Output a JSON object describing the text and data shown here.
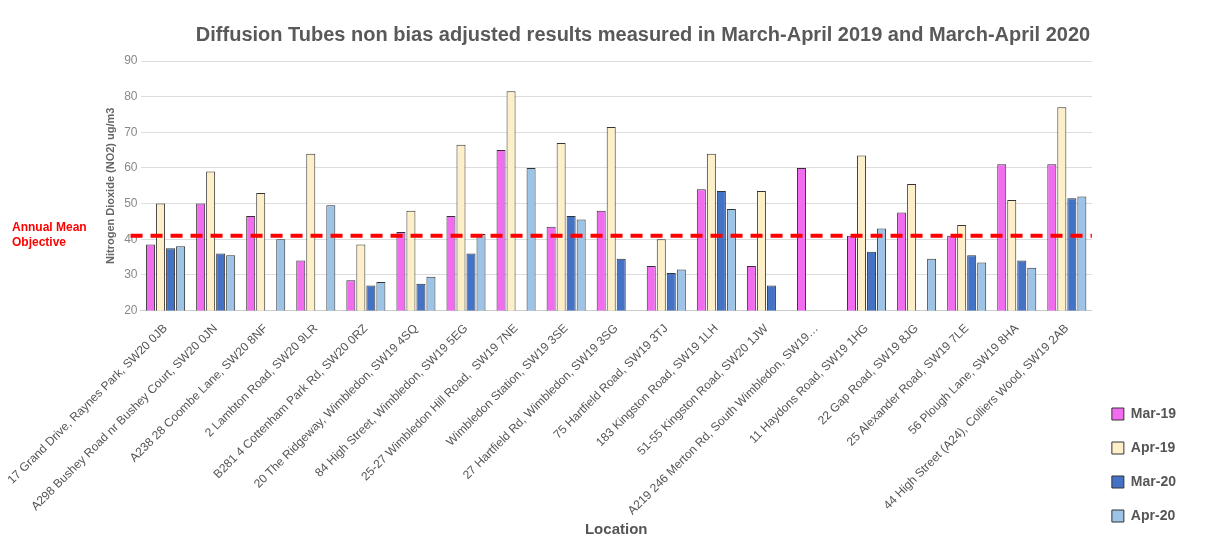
{
  "chart_data": {
    "type": "bar",
    "title": "Diffusion Tubes non bias adjusted results measured in March-April 2019 and March-April 2020",
    "xlabel": "Location",
    "ylabel": "Nitrogen Dioxide (NO2) ug/m3",
    "categories": [
      "17 Grand Drive, Raynes Park, SW20 0JB",
      "A298 Bushey Road nr Bushey Court, SW20 0JN",
      "A238 28 Coombe Lane, SW20 8NF",
      "2 Lambton Road, SW20 9LR",
      "B281 4 Cottenham Park Rd, SW20 0RZ",
      "20 The Ridgeway, Wimbledon, SW19 4SQ",
      "84 High Street, Wimbledon, SW19 5EG",
      "25-27 Wimbledon Hill Road,  SW19 7NE",
      "Wimbledon Station, SW19 3SE",
      "27 Hartfield Rd, Wimbledon, SW19 3SG",
      "75 Hartfield Road, SW19 3TJ",
      "183 Kingston Road, SW19 1LH",
      "51-55 Kingston Road, SW20 1JW",
      "A219 246 Merton Rd, South Wimbledon, SW19…",
      "11 Haydons Road, SW19 1HG",
      "22 Gap Road, SW19 8JG",
      "25 Alexander Road, SW19 7LE",
      "56 Plough Lane, SW19 8HA",
      "44 High Street (A24), Colliers Wood, SW19 2AB"
    ],
    "series": [
      {
        "name": "Mar-19",
        "color": "#f26cf0",
        "values": [
          38.5,
          50,
          46.5,
          34,
          28.5,
          42,
          46.5,
          65,
          43.5,
          48,
          32.5,
          54,
          32.5,
          60,
          41,
          47.5,
          41,
          61,
          61
        ]
      },
      {
        "name": "Apr-19",
        "color": "#fdf0c8",
        "values": [
          50,
          59,
          53,
          64,
          38.5,
          48,
          66.5,
          81.5,
          67,
          71.5,
          40,
          64,
          53.5,
          null,
          63.5,
          55.5,
          44,
          51,
          77
        ]
      },
      {
        "name": "Mar-20",
        "color": "#4472c4",
        "values": [
          37.5,
          36,
          null,
          null,
          27,
          27.5,
          36,
          null,
          46.5,
          34.5,
          30.5,
          53.5,
          27,
          null,
          36.5,
          null,
          35.5,
          34,
          51.5
        ]
      },
      {
        "name": "Apr-20",
        "color": "#9dc3e6",
        "values": [
          38,
          35.5,
          40,
          49.5,
          28,
          29.5,
          41.5,
          60,
          45.5,
          null,
          31.5,
          48.5,
          null,
          null,
          43,
          34.5,
          33.5,
          32,
          52
        ]
      }
    ],
    "ylim": [
      20,
      90
    ],
    "yticks": [
      20,
      30,
      40,
      50,
      60,
      70,
      80,
      90
    ],
    "grid": "y",
    "legend": "right",
    "ref_lines": [
      {
        "axis": "y",
        "value": 41,
        "label": "Annual Mean Objective",
        "color": "#ff0000",
        "line_style": "dashed"
      }
    ]
  }
}
